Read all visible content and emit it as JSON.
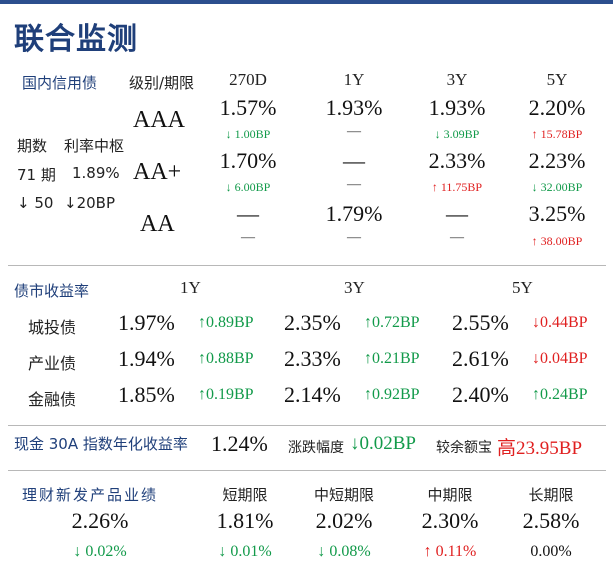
{
  "title": "联合监测",
  "credit": {
    "section": "国内信用债",
    "col_header": "级别/期限",
    "tenors": [
      "270D",
      "1Y",
      "3Y",
      "5Y"
    ],
    "side": {
      "label_periods": "期数",
      "label_rate": "利率中枢",
      "periods": "71 期",
      "rate": "1.89%",
      "chg_periods": "50",
      "chg_rate": "20BP"
    },
    "rows": [
      {
        "rating": "AAA",
        "vals": [
          "1.57%",
          "1.93%",
          "1.93%",
          "2.20%"
        ],
        "chg": [
          "↓ 1.00BP",
          "—",
          "↓ 3.09BP",
          "↑ 15.78BP"
        ]
      },
      {
        "rating": "AA+",
        "vals": [
          "1.70%",
          "—",
          "2.33%",
          "2.23%"
        ],
        "chg": [
          "↓ 6.00BP",
          "—",
          "↑ 11.75BP",
          "↓ 32.00BP"
        ]
      },
      {
        "rating": "AA",
        "vals": [
          "—",
          "1.79%",
          "—",
          "3.25%"
        ],
        "chg": [
          "—",
          "—",
          "—",
          "↑ 38.00BP"
        ]
      }
    ]
  },
  "bond": {
    "section": "债市收益率",
    "tenors": [
      "1Y",
      "3Y",
      "5Y"
    ],
    "rows": [
      {
        "name": "城投债",
        "vals": [
          "1.97%",
          "2.35%",
          "2.55%"
        ],
        "chg": [
          "0.89BP",
          "0.72BP",
          "0.44BP"
        ],
        "dir": [
          "up",
          "up",
          "down"
        ]
      },
      {
        "name": "产业债",
        "vals": [
          "1.94%",
          "2.33%",
          "2.61%"
        ],
        "chg": [
          "0.88BP",
          "0.21BP",
          "0.04BP"
        ],
        "dir": [
          "up",
          "up",
          "down"
        ]
      },
      {
        "name": "金融债",
        "vals": [
          "1.85%",
          "2.14%",
          "2.40%"
        ],
        "chg": [
          "0.19BP",
          "0.92BP",
          "0.24BP"
        ],
        "dir": [
          "up",
          "up",
          "up"
        ]
      }
    ]
  },
  "cash": {
    "label": "现金 30A 指数年化收益率",
    "value": "1.24%",
    "chg_label": "涨跌幅度",
    "chg": "0.02BP",
    "cmp_label": "较余额宝",
    "cmp_word": "高",
    "cmp_value": "23.95BP"
  },
  "wm": {
    "section": "理财新发产品业绩",
    "headers": [
      "短期限",
      "中短期限",
      "中期限",
      "长期限"
    ],
    "overall": "2.26%",
    "overall_chg": "↓ 0.02%",
    "vals": [
      "1.81%",
      "2.02%",
      "2.30%",
      "2.58%"
    ],
    "chg": [
      "↓ 0.01%",
      "↓ 0.08%",
      "↑ 0.11%",
      "0.00%"
    ]
  },
  "colors": {
    "up": "#e02020",
    "down": "#129a4a",
    "brand": "#1f3f7a"
  }
}
